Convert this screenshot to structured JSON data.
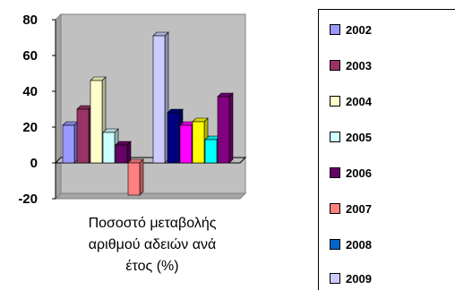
{
  "chart_data": {
    "type": "bar",
    "categories": [
      "Ποσοστό μεταβολής αριθμού αδειών ανά έτος (%)"
    ],
    "category_lines": [
      "Ποσοστό μεταβολής",
      "αριθμού αδειών ανά",
      "έτος (%)"
    ],
    "series": [
      {
        "name": "2002",
        "values": [
          21
        ],
        "color": "#9999ff"
      },
      {
        "name": "2003",
        "values": [
          30
        ],
        "color": "#993366"
      },
      {
        "name": "2004",
        "values": [
          46
        ],
        "color": "#ffffcc"
      },
      {
        "name": "2005",
        "values": [
          17
        ],
        "color": "#ccffff"
      },
      {
        "name": "2006",
        "values": [
          10
        ],
        "color": "#660066"
      },
      {
        "name": "2007",
        "values": [
          -18
        ],
        "color": "#ff8080"
      },
      {
        "name": "2008",
        "values": [
          null
        ],
        "color": "#0066cc"
      },
      {
        "name": "2009",
        "values": [
          71
        ],
        "color": "#ccccff"
      },
      {
        "name": "",
        "values": [
          28
        ],
        "color": "#000080"
      },
      {
        "name": "",
        "values": [
          21
        ],
        "color": "#ff00ff"
      },
      {
        "name": "",
        "values": [
          23
        ],
        "color": "#ffff00"
      },
      {
        "name": "",
        "values": [
          13
        ],
        "color": "#00ffff"
      },
      {
        "name": "",
        "values": [
          37
        ],
        "color": "#800080"
      }
    ],
    "ylim": [
      -20,
      80
    ],
    "yticks": [
      "80",
      "60",
      "40",
      "20",
      "0",
      "-20"
    ],
    "plot_background": "#c0c0c0",
    "grid": false,
    "legend_position": "right"
  }
}
